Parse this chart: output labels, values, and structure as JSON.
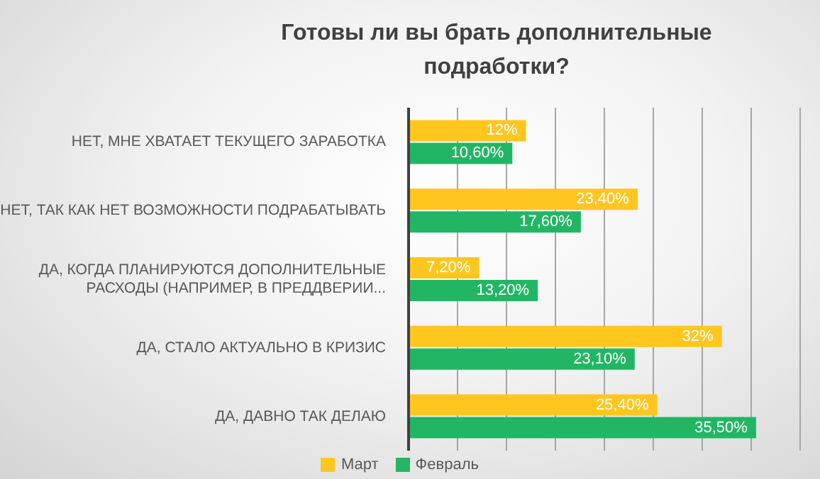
{
  "chart_data": {
    "type": "bar",
    "orientation": "horizontal",
    "title": "Готовы ли вы брать дополнительные подработки?",
    "categories": [
      "НЕТ, МНЕ ХВАТАЕТ ТЕКУЩЕГО ЗАРАБОТКА",
      "НЕТ, ТАК КАК НЕТ ВОЗМОЖНОСТИ ПОДРАБАТЫВАТЬ",
      "ДА, КОГДА ПЛАНИРУЮТСЯ ДОПОЛНИТЕЛЬНЫЕ РАСХОДЫ (НАПРИМЕР, В ПРЕДДВЕРИИ...",
      "ДА, СТАЛО  АКТУАЛЬНО В КРИЗИС",
      "ДА, ДАВНО ТАК ДЕЛАЮ"
    ],
    "series": [
      {
        "name": "Март",
        "color": "#ffc620",
        "values": [
          12,
          23.4,
          7.2,
          32,
          25.4
        ],
        "value_labels": [
          "12%",
          "23,40%",
          "7,20%",
          "32%",
          "25,40%"
        ]
      },
      {
        "name": "Февраль",
        "color": "#22b664",
        "values": [
          10.6,
          17.6,
          13.2,
          23.1,
          35.5
        ],
        "value_labels": [
          "10,60%",
          "17,60%",
          "13,20%",
          "23,10%",
          "35,50%"
        ]
      }
    ],
    "grid": "x",
    "legend": "bottom",
    "tick_labels": "y"
  }
}
